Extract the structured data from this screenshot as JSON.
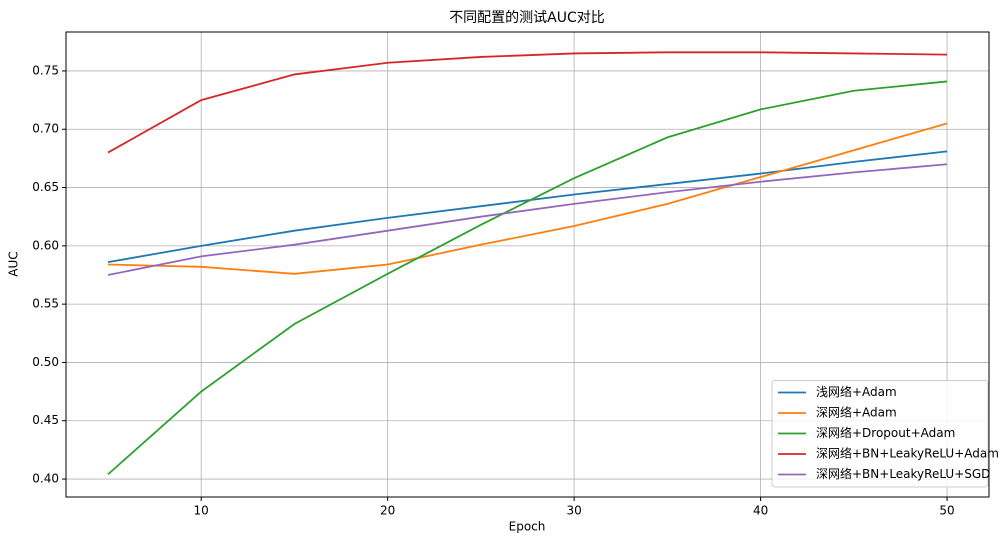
{
  "chart_data": {
    "type": "line",
    "title": "不同配置的测试AUC对比",
    "x_label": "Epoch",
    "y_label": "AUC",
    "x": [
      5,
      10,
      15,
      20,
      25,
      30,
      35,
      40,
      45,
      50
    ],
    "series": [
      {
        "name": "浅网络+Adam",
        "color": "#1f77b4",
        "values": [
          0.586,
          0.6,
          0.613,
          0.624,
          0.634,
          0.644,
          0.653,
          0.662,
          0.672,
          0.681
        ]
      },
      {
        "name": "深网络+Adam",
        "color": "#ff7f0e",
        "values": [
          0.584,
          0.582,
          0.576,
          0.584,
          0.601,
          0.617,
          0.636,
          0.659,
          0.682,
          0.705
        ]
      },
      {
        "name": "深网络+Dropout+Adam",
        "color": "#2ca02c",
        "values": [
          0.404,
          0.475,
          0.533,
          0.576,
          0.618,
          0.658,
          0.693,
          0.717,
          0.733,
          0.741
        ]
      },
      {
        "name": "深网络+BN+LeakyReLU+Adam",
        "color": "#d62728",
        "values": [
          0.68,
          0.725,
          0.747,
          0.757,
          0.762,
          0.765,
          0.766,
          0.766,
          0.765,
          0.764
        ]
      },
      {
        "name": "深网络+BN+LeakyReLU+SGD",
        "color": "#9467bd",
        "values": [
          0.575,
          0.591,
          0.601,
          0.613,
          0.625,
          0.636,
          0.646,
          0.655,
          0.663,
          0.67
        ]
      }
    ],
    "xlim": [
      2.75,
      52.25
    ],
    "xticks": [
      10,
      20,
      30,
      40,
      50
    ],
    "ylim": [
      0.3846,
      0.7834
    ],
    "yticks": [
      {
        "value": 0.4,
        "label": "0.40"
      },
      {
        "value": 0.45,
        "label": "0.45"
      },
      {
        "value": 0.5,
        "label": "0.50"
      },
      {
        "value": 0.55,
        "label": "0.55"
      },
      {
        "value": 0.6,
        "label": "0.60"
      },
      {
        "value": 0.65,
        "label": "0.65"
      },
      {
        "value": 0.7,
        "label": "0.70"
      },
      {
        "value": 0.75,
        "label": "0.75"
      }
    ],
    "grid": true,
    "legend": "lower right"
  }
}
